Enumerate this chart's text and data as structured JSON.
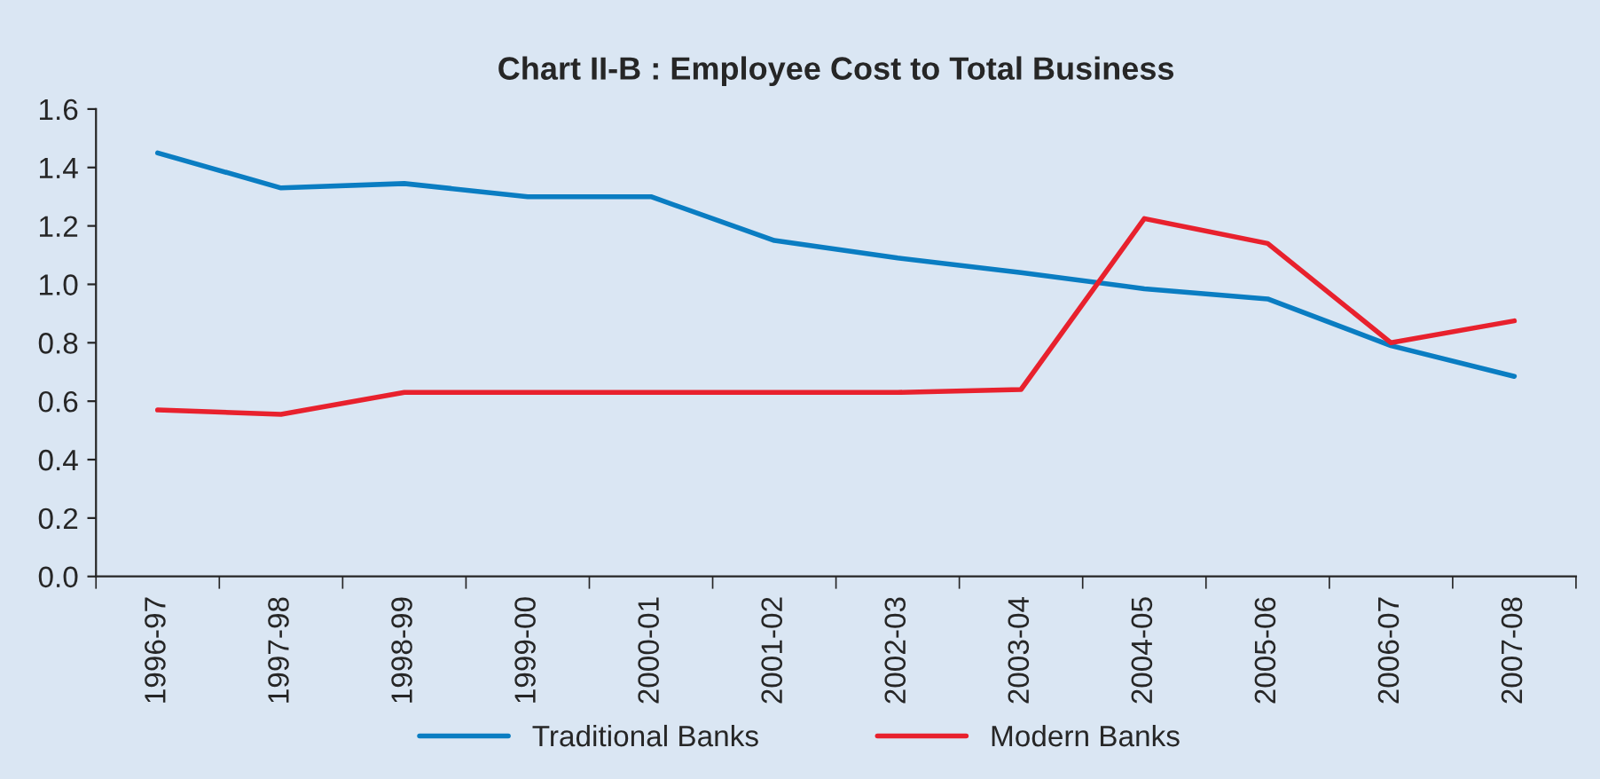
{
  "chart_data": {
    "type": "line",
    "title": "Chart II-B : Employee Cost to Total Business",
    "categories": [
      "1996-97",
      "1997-98",
      "1998-99",
      "1999-00",
      "2000-01",
      "2001-02",
      "2002-03",
      "2003-04",
      "2004-05",
      "2005-06",
      "2006-07",
      "2007-08"
    ],
    "series": [
      {
        "name": "Traditional Banks",
        "color": "#0a7dc2",
        "values": [
          1.45,
          1.33,
          1.345,
          1.3,
          1.3,
          1.15,
          1.09,
          1.04,
          0.985,
          0.95,
          0.79,
          0.685
        ]
      },
      {
        "name": "Modern Banks",
        "color": "#e8212d",
        "values": [
          0.57,
          0.555,
          0.63,
          0.63,
          0.63,
          0.63,
          0.63,
          0.64,
          1.225,
          1.14,
          0.8,
          0.875
        ]
      }
    ],
    "ylim": [
      0,
      1.6
    ],
    "yticks": [
      {
        "value": 0,
        "label": "0.0"
      },
      {
        "value": 0.2,
        "label": "0.2"
      },
      {
        "value": 0.4,
        "label": "0.4"
      },
      {
        "value": 0.6,
        "label": "0.6"
      },
      {
        "value": 0.8,
        "label": "0.8"
      },
      {
        "value": 1.0,
        "label": "1.0"
      },
      {
        "value": 1.2,
        "label": "1.2"
      },
      {
        "value": 1.4,
        "label": "1.4"
      },
      {
        "value": 1.6,
        "label": "1.6"
      }
    ],
    "grid": false,
    "legend": "bottom",
    "marker": "none",
    "line_style": "solid"
  }
}
